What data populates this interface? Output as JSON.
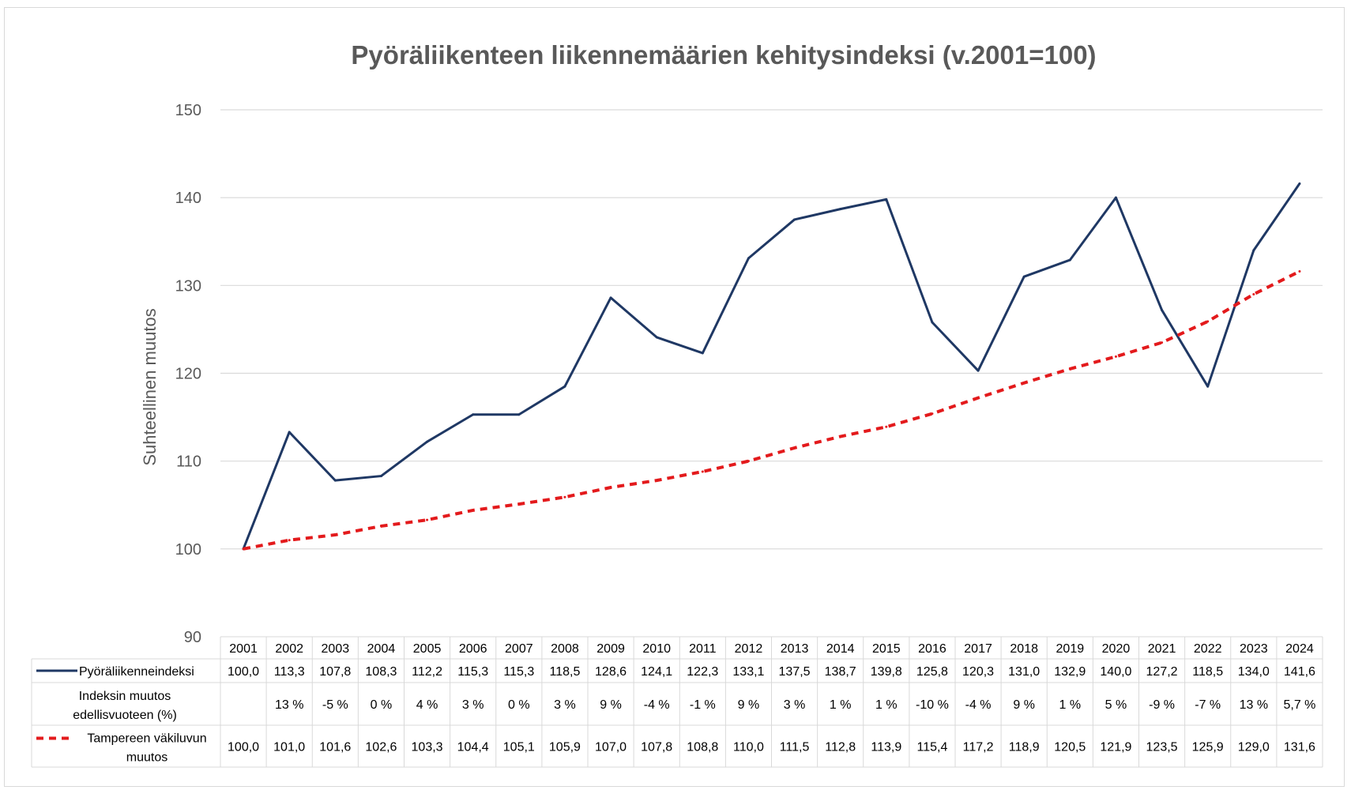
{
  "chart_data": {
    "type": "line",
    "title": "Pyöräliikenteen liikennemäärien kehitysindeksi (v.2001=100)",
    "xlabel": "",
    "ylabel": "Suhteellinen muutos",
    "ylim": [
      90,
      150
    ],
    "yticks": [
      90,
      100,
      110,
      120,
      130,
      140,
      150
    ],
    "grid": true,
    "legend": "data-table",
    "categories": [
      "2001",
      "2002",
      "2003",
      "2004",
      "2005",
      "2006",
      "2007",
      "2008",
      "2009",
      "2010",
      "2011",
      "2012",
      "2013",
      "2014",
      "2015",
      "2016",
      "2017",
      "2018",
      "2019",
      "2020",
      "2021",
      "2022",
      "2023",
      "2024"
    ],
    "series": [
      {
        "name": "Pyöräliikenneindeksi",
        "color": "#1f3864",
        "style": "solid",
        "values": [
          100.0,
          113.3,
          107.8,
          108.3,
          112.2,
          115.3,
          115.3,
          118.5,
          128.6,
          124.1,
          122.3,
          133.1,
          137.5,
          138.7,
          139.8,
          125.8,
          120.3,
          131.0,
          132.9,
          140.0,
          127.2,
          118.5,
          134.0,
          141.6
        ],
        "labels": [
          "100,0",
          "113,3",
          "107,8",
          "108,3",
          "112,2",
          "115,3",
          "115,3",
          "118,5",
          "128,6",
          "124,1",
          "122,3",
          "133,1",
          "137,5",
          "138,7",
          "139,8",
          "125,8",
          "120,3",
          "131,0",
          "132,9",
          "140,0",
          "127,2",
          "118,5",
          "134,0",
          "141,6"
        ]
      },
      {
        "name": "Tampereen väkiluvun muutos",
        "name_lines": [
          "Tampereen väkiluvun",
          "muutos"
        ],
        "color": "#e31a1c",
        "style": "dashed",
        "values": [
          100.0,
          101.0,
          101.6,
          102.6,
          103.3,
          104.4,
          105.1,
          105.9,
          107.0,
          107.8,
          108.8,
          110.0,
          111.5,
          112.8,
          113.9,
          115.4,
          117.2,
          118.9,
          120.5,
          121.9,
          123.5,
          125.9,
          129.0,
          131.6
        ],
        "labels": [
          "100,0",
          "101,0",
          "101,6",
          "102,6",
          "103,3",
          "104,4",
          "105,1",
          "105,9",
          "107,0",
          "107,8",
          "108,8",
          "110,0",
          "111,5",
          "112,8",
          "113,9",
          "115,4",
          "117,2",
          "118,9",
          "120,5",
          "121,9",
          "123,5",
          "125,9",
          "129,0",
          "131,6"
        ]
      }
    ],
    "table_row": {
      "name_lines": [
        "Indeksin muutos",
        "edellisvuoteen (%)"
      ],
      "values": [
        "",
        "13 %",
        "-5 %",
        "0 %",
        "4 %",
        "3 %",
        "0 %",
        "3 %",
        "9 %",
        "-4 %",
        "-1 %",
        "9 %",
        "3 %",
        "1 %",
        "1 %",
        "-10 %",
        "-4 %",
        "9 %",
        "1 %",
        "5 %",
        "-9 %",
        "-7 %",
        "13 %",
        "5,7 %"
      ]
    }
  }
}
